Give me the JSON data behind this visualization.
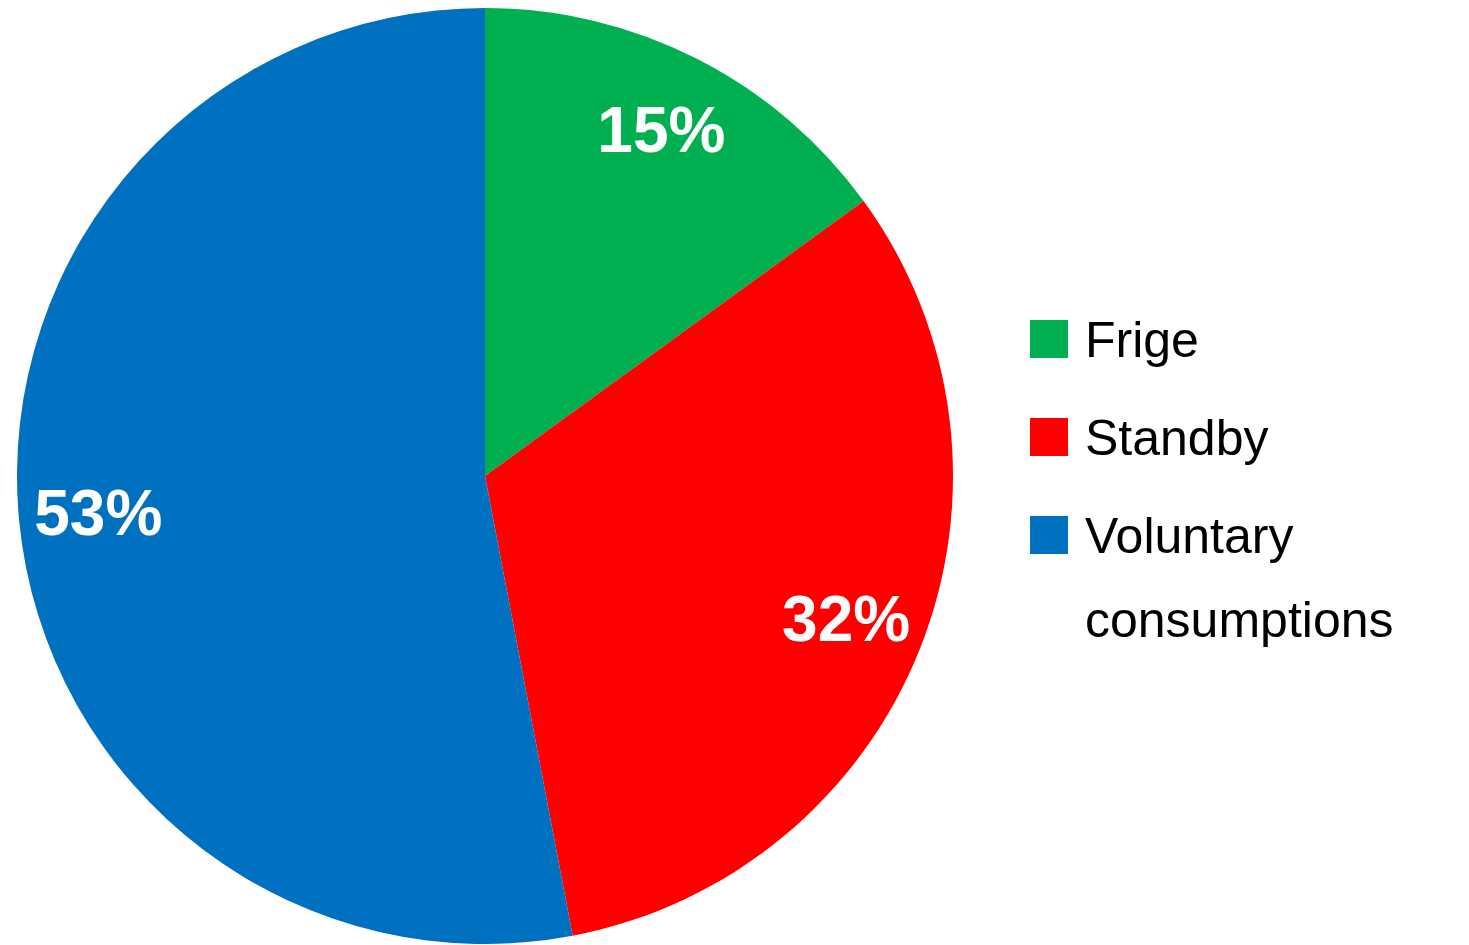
{
  "chart_data": {
    "type": "pie",
    "categories": [
      "Frige",
      "Standby",
      "Voluntary consumptions"
    ],
    "values": [
      15,
      32,
      53
    ],
    "colors": [
      "#00b050",
      "#ff0000",
      "#0070c0"
    ],
    "value_labels": [
      "15%",
      "32%",
      "53%"
    ],
    "legend": "right"
  }
}
